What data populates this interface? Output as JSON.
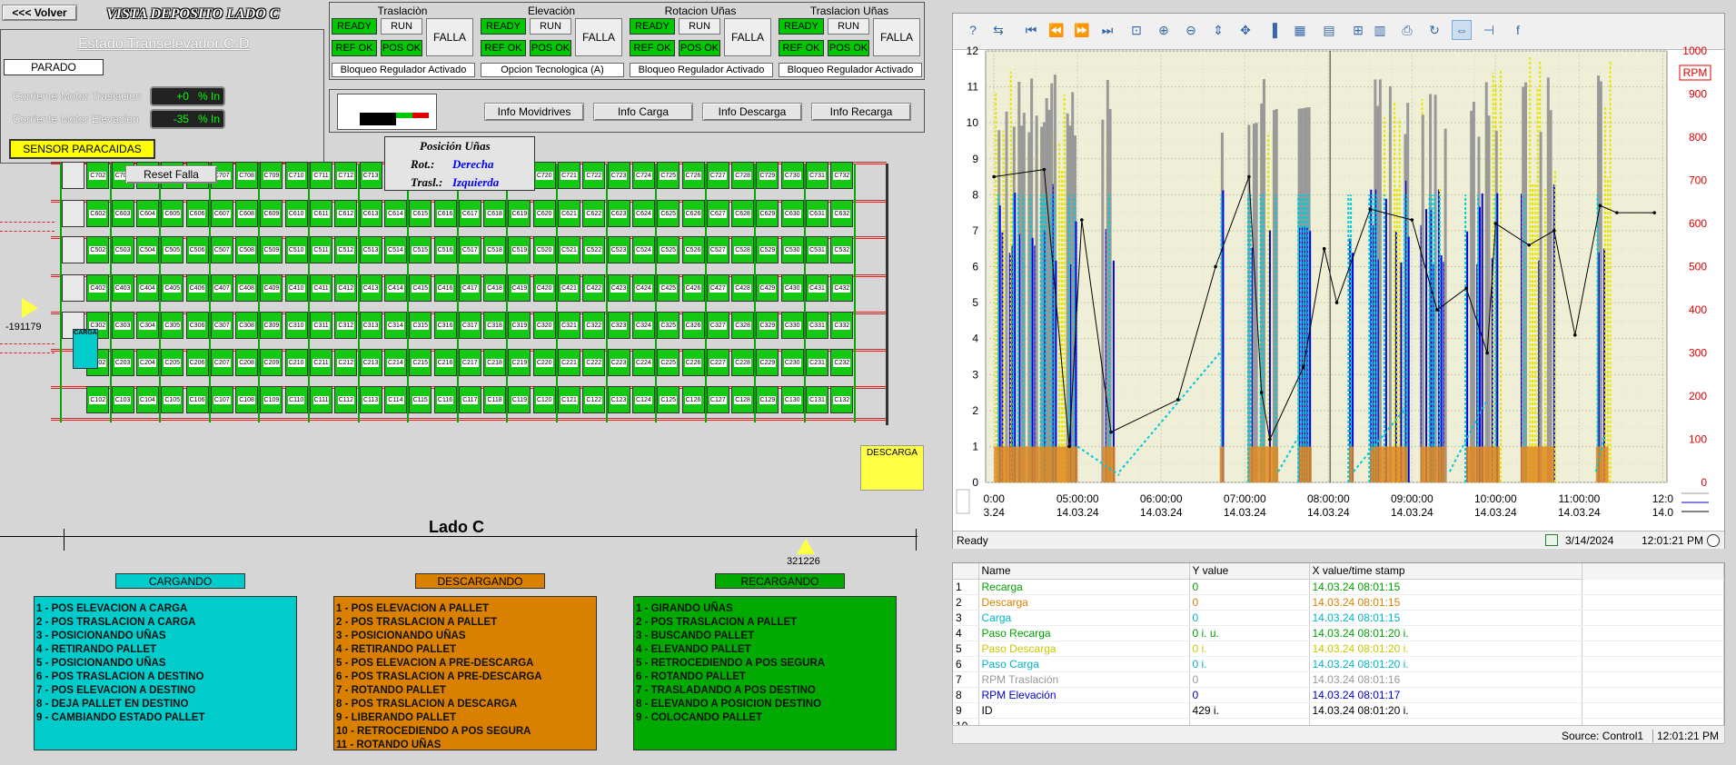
{
  "header": {
    "back_label": "<<< Volver",
    "title": "VISTA DEPOSITO LADO C"
  },
  "estado": {
    "title": "Estado Transelevador C-D",
    "state": "PARADO",
    "motor_traslacion_label": "Corriente Motor Traslacion",
    "motor_traslacion_value": "+0",
    "motor_elevacion_label": "Corriente Motor Elevacion",
    "motor_elevacion_value": "-35",
    "unit": "% In",
    "sensor": "SENSOR PARACAIDAS"
  },
  "drives": [
    {
      "title": "Traslaciòn",
      "ready": "READY",
      "run": "RUN",
      "refok": "REF OK",
      "posok": "POS OK",
      "falla": "FALLA",
      "status": "Bloqueo Regulador Activado"
    },
    {
      "title": "Elevaciòn",
      "ready": "READY",
      "run": "RUN",
      "refok": "REF OK",
      "posok": "POS OK",
      "falla": "FALLA",
      "status": "Opcion Tecnologica (A)"
    },
    {
      "title": "Rotacion Uñas",
      "ready": "READY",
      "run": "RUN",
      "refok": "REF OK",
      "posok": "POS OK",
      "falla": "FALLA",
      "status": "Bloqueo Regulador Activado"
    },
    {
      "title": "Traslacion Uñas",
      "ready": "READY",
      "run": "RUN",
      "refok": "REF OK",
      "posok": "POS OK",
      "falla": "FALLA",
      "status": "Bloqueo Regulador Activado"
    }
  ],
  "info_buttons": [
    "Info Movidrives",
    "Info Carga",
    "Info Descarga",
    "Info Recarga"
  ],
  "reset_label": "Reset Falla",
  "posicion": {
    "title": "Posición Uñas",
    "rot_label": "Rot.:",
    "rot_value": "Derecha",
    "trasl_label": "Trasl.:",
    "trasl_value": "Izquierda"
  },
  "warehouse": {
    "rows": [
      {
        "prefix": "C7",
        "missing": [
          "C701"
        ]
      },
      {
        "prefix": "C6",
        "missing": [
          "C601"
        ]
      },
      {
        "prefix": "C5",
        "missing": [
          "C501"
        ]
      },
      {
        "prefix": "C4",
        "missing": [
          "C401"
        ]
      },
      {
        "prefix": "C3",
        "missing": [
          "C301"
        ]
      },
      {
        "prefix": "C2",
        "missing": [
          "C201"
        ]
      },
      {
        "prefix": "C1",
        "missing": [
          "C101"
        ]
      }
    ],
    "carga_label": "CARGA",
    "descarga_label": "DESCARGA",
    "side_label": "Lado C",
    "pos_left": "-191179",
    "pos_bottom": "321226"
  },
  "legends": [
    {
      "title": "CARGANDO",
      "color": "#00cccc",
      "items": [
        "1 - POS ELEVACION A CARGA",
        "2 - POS TRASLACION A CARGA",
        "3 - POSICIONANDO UÑAS",
        "4 - RETIRANDO PALLET",
        "5 - POSICIONANDO UÑAS",
        "6 - POS TRASLACION A DESTINO",
        "7 - POS ELEVACION A DESTINO",
        "8 - DEJA PALLET EN DESTINO",
        "9 - CAMBIANDO ESTADO PALLET"
      ]
    },
    {
      "title": "DESCARGANDO",
      "color": "#d98000",
      "items": [
        "1 - POS ELEVACION A PALLET",
        "2 - POS TRASLACION A PALLET",
        "3 - POSICIONANDO UÑAS",
        "4 - RETIRANDO PALLET",
        "5 - POS ELEVACION A PRE-DESCARGA",
        "6 - POS TRASLACION A PRE-DESCARGA",
        "7 - ROTANDO PALLET",
        "8 - POS TRASLACION A DESCARGA",
        "9 - LIBERANDO PALLET",
        "10 - RETROCEDIENDO A POS SEGURA",
        "11 - ROTANDO UÑAS"
      ]
    },
    {
      "title": "RECARGANDO",
      "color": "#00aa00",
      "items": [
        "1 - GIRANDO UÑAS",
        "2 - POS TRASLACION A PALLET",
        "3 - BUSCANDO PALLET",
        "4 - ELEVANDO PALLET",
        "5 - RETROCEDIENDO A POS SEGURA",
        "6 - ROTANDO PALLET",
        "7 - TRASLADANDO A POS DESTINO",
        "8 - ELEVANDO A POSICION DESTINO",
        "9 - COLOCANDO PALLET"
      ]
    }
  ],
  "trend": {
    "status": "Ready",
    "date": "3/14/2024",
    "time": "12:01:21 PM",
    "rpm_label": "RPM",
    "source": "Source: Control1",
    "source_time": "12:01:21 PM",
    "table_headers": [
      "",
      "Name",
      "Y value",
      "X value/time stamp"
    ],
    "rows": [
      {
        "n": "1",
        "name": "Recarga",
        "y": "0",
        "x": "14.03.24 08:01:15",
        "color": "#00a000"
      },
      {
        "n": "2",
        "name": "Descarga",
        "y": "0",
        "x": "14.03.24 08:01:15",
        "color": "#d98000"
      },
      {
        "n": "3",
        "name": "Carga",
        "y": "0",
        "x": "14.03.24 08:01:15",
        "color": "#00b4c8"
      },
      {
        "n": "4",
        "name": "Paso Recarga",
        "y": "0 i. u.",
        "x": "14.03.24 08:01:20 i.",
        "color": "#00a000"
      },
      {
        "n": "5",
        "name": "Paso Descarga",
        "y": "0 i.",
        "x": "14.03.24 08:01:20 i.",
        "color": "#c8c800"
      },
      {
        "n": "6",
        "name": "Paso Carga",
        "y": "0 i.",
        "x": "14.03.24 08:01:20 i.",
        "color": "#00b4c8"
      },
      {
        "n": "7",
        "name": "RPM Traslación",
        "y": "0",
        "x": "14.03.24 08:01:16",
        "color": "#999999"
      },
      {
        "n": "8",
        "name": "RPM Elevación",
        "y": "0",
        "x": "14.03.24 08:01:17",
        "color": "#0000cc"
      },
      {
        "n": "9",
        "name": "ID",
        "y": "429 i.",
        "x": "14.03.24 08:01:20 i.",
        "color": "#000000"
      },
      {
        "n": "10",
        "name": "",
        "y": "",
        "x": "",
        "color": "#000000"
      }
    ]
  },
  "chart_data": {
    "type": "line",
    "left_axis": {
      "ylim": [
        0,
        12
      ],
      "ticks": [
        "0",
        "1",
        "2",
        "3",
        "4",
        "5",
        "6",
        "7",
        "8",
        "9",
        "10",
        "11",
        "12"
      ]
    },
    "right_axis": {
      "label": "RPM",
      "ylim": [
        0,
        1000
      ],
      "ticks": [
        "0",
        "100",
        "200",
        "300",
        "400",
        "500",
        "600",
        "700",
        "800",
        "900",
        "1000"
      ],
      "color": "#e00000"
    },
    "x_ticks": [
      {
        "time": "0:00",
        "date": "3.24"
      },
      {
        "time": "05:00:00",
        "date": "14.03.24"
      },
      {
        "time": "06:00:00",
        "date": "14.03.24"
      },
      {
        "time": "07:00:00",
        "date": "14.03.24"
      },
      {
        "time": "08:00:00",
        "date": "14.03.24"
      },
      {
        "time": "09:00:00",
        "date": "14.03.24"
      },
      {
        "time": "10:00:00",
        "date": "14.03.24"
      },
      {
        "time": "11:00:00",
        "date": "14.03.24"
      },
      {
        "time": "12:0",
        "date": "14.0"
      }
    ],
    "series": [
      {
        "name": "ID",
        "color": "#000000",
        "points": [
          [
            4.0,
            8.5
          ],
          [
            4.6,
            8.7
          ],
          [
            4.9,
            1.0
          ],
          [
            5.05,
            7.3
          ],
          [
            5.4,
            1.4
          ],
          [
            6.2,
            2.3
          ],
          [
            6.65,
            6.0
          ],
          [
            7.05,
            8.5
          ],
          [
            7.2,
            2.5
          ],
          [
            7.3,
            1.2
          ],
          [
            7.7,
            3.2
          ],
          [
            7.95,
            6.5
          ],
          [
            8.1,
            5.0
          ],
          [
            8.5,
            7.6
          ],
          [
            9.0,
            7.3
          ],
          [
            9.3,
            4.8
          ],
          [
            9.65,
            5.4
          ],
          [
            9.9,
            3.6
          ],
          [
            10.0,
            7.2
          ],
          [
            10.4,
            6.6
          ],
          [
            10.7,
            7.0
          ],
          [
            10.95,
            4.1
          ],
          [
            11.25,
            7.7
          ],
          [
            11.45,
            7.5
          ],
          [
            11.9,
            7.5
          ]
        ]
      }
    ]
  }
}
